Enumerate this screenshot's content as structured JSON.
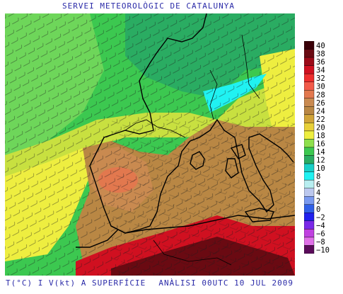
{
  "header": {
    "title": "SERVEI METEOROLÒGIC DE CATALUNYA"
  },
  "footer": {
    "left": "T(°C) I V(kt) A SUPERFÍCIE",
    "right": "ANÀLISI 00UTC 10 JUL 2009"
  },
  "legend": {
    "items": [
      {
        "label": "40",
        "color": "#3a0008"
      },
      {
        "label": "38",
        "color": "#6a0a12"
      },
      {
        "label": "36",
        "color": "#9c0a18"
      },
      {
        "label": "34",
        "color": "#d01020"
      },
      {
        "label": "32",
        "color": "#ee2d2d"
      },
      {
        "label": "30",
        "color": "#f25a4a"
      },
      {
        "label": "28",
        "color": "#e2784e"
      },
      {
        "label": "26",
        "color": "#c98a50"
      },
      {
        "label": "24",
        "color": "#b98744"
      },
      {
        "label": "22",
        "color": "#d0a438"
      },
      {
        "label": "20",
        "color": "#e8d038"
      },
      {
        "label": "18",
        "color": "#eeee40"
      },
      {
        "label": "16",
        "color": "#8ee04c"
      },
      {
        "label": "14",
        "color": "#3cc850"
      },
      {
        "label": "12",
        "color": "#2aac62"
      },
      {
        "label": "10",
        "color": "#18d0c8"
      },
      {
        "label": "8",
        "color": "#20f2f2"
      },
      {
        "label": "6",
        "color": "#b8eef0"
      },
      {
        "label": "4",
        "color": "#bcc8ee"
      },
      {
        "label": "2",
        "color": "#7a9af0"
      },
      {
        "label": "0",
        "color": "#3060e8"
      },
      {
        "label": "−2",
        "color": "#2020ee"
      },
      {
        "label": "−4",
        "color": "#7a28e8"
      },
      {
        "label": "−6",
        "color": "#c040e0"
      },
      {
        "label": "−8",
        "color": "#e070e8"
      },
      {
        "label": "−10",
        "color": "#5a0a5a"
      }
    ]
  }
}
